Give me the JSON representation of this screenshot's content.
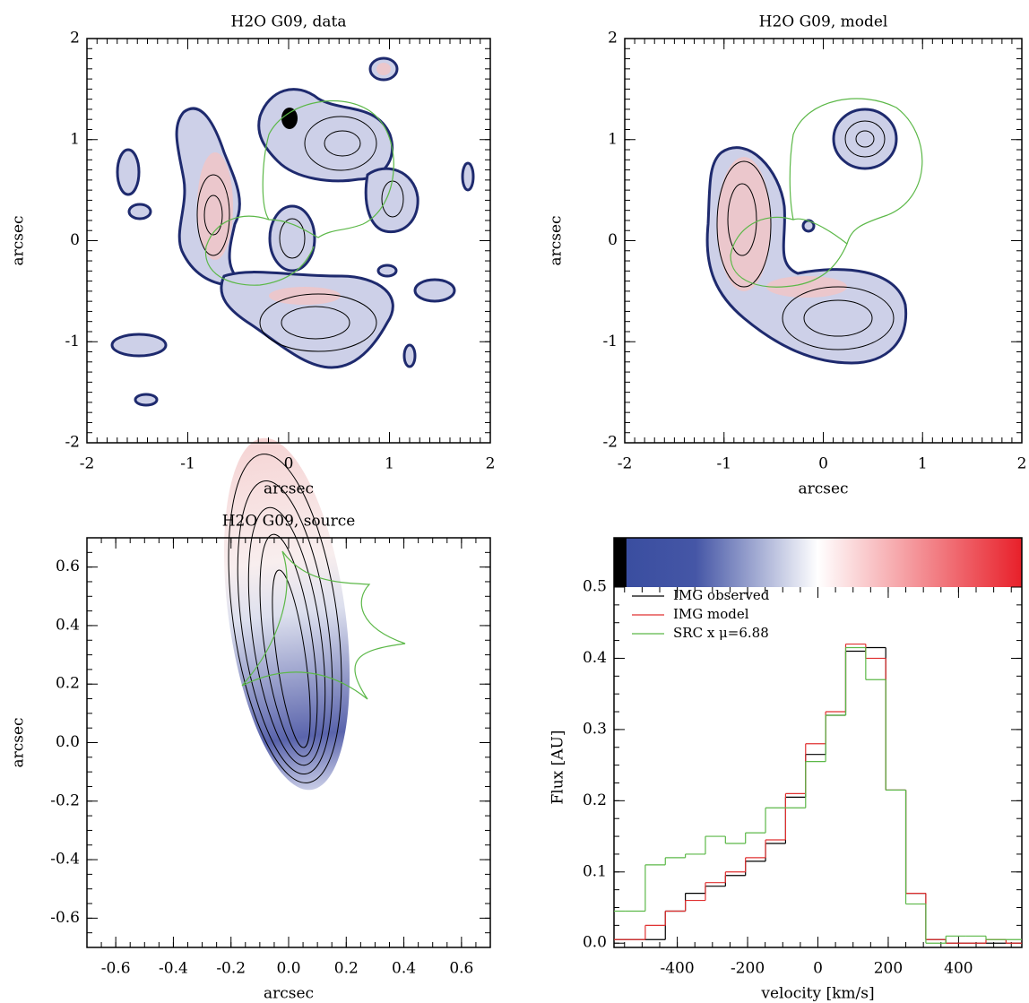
{
  "chart_data": [
    {
      "type": "contour",
      "title": "H2O G09, data",
      "x_label": "arcsec",
      "y_label": "arcsec",
      "xlim": [
        -2,
        2
      ],
      "ylim": [
        -2,
        2
      ],
      "xticks": [
        -2,
        -1,
        0,
        1,
        2
      ],
      "yticks": [
        -2,
        -1,
        0,
        1,
        2
      ]
    },
    {
      "type": "contour",
      "title": "H2O G09, model",
      "x_label": "arcsec",
      "y_label": "arcsec",
      "xlim": [
        -2,
        2
      ],
      "ylim": [
        -2,
        2
      ],
      "xticks": [
        -2,
        -1,
        0,
        1,
        2
      ],
      "yticks": [
        -2,
        -1,
        0,
        1,
        2
      ]
    },
    {
      "type": "contour",
      "title": "H2O G09, source",
      "x_label": "arcsec",
      "y_label": "arcsec",
      "xlim": [
        -0.7,
        0.7
      ],
      "ylim": [
        -0.7,
        0.7
      ],
      "xticks": [
        -0.6,
        -0.4,
        -0.2,
        {
          "value": 0,
          "label": "0.0"
        },
        0.2,
        0.4,
        0.6
      ],
      "yticks": [
        -0.6,
        -0.4,
        -0.2,
        {
          "value": 0,
          "label": "0.0"
        },
        0.2,
        0.4,
        0.6
      ]
    },
    {
      "type": "histogram",
      "x_label": "velocity [km/s]",
      "y_label": "Flux [AU]",
      "xlim": [
        -580,
        580
      ],
      "ylim": [
        -0.006,
        0.5
      ],
      "xticks": [
        -400,
        -200,
        0,
        200,
        400
      ],
      "yticks": [
        {
          "value": 0,
          "label": "0.0"
        },
        0.1,
        0.2,
        0.3,
        0.4,
        0.5
      ],
      "legend": "upper left",
      "bins": [
        -605,
        -548,
        -491,
        -434,
        -377,
        -320,
        -263,
        -206,
        -149,
        -92,
        -35,
        22,
        79,
        136,
        193,
        250,
        307,
        364,
        421,
        478,
        535,
        592
      ],
      "series": [
        {
          "name": "IMG observed",
          "color": "#000000",
          "values": [
            0.005,
            0.005,
            0.005,
            0.045,
            0.07,
            0.08,
            0.095,
            0.115,
            0.14,
            0.205,
            0.265,
            0.32,
            0.41,
            0.415,
            0.215,
            0.07,
            0.005,
            0,
            0,
            0,
            0
          ]
        },
        {
          "name": "IMG model",
          "color": "#e03030",
          "values": [
            0.005,
            0.005,
            0.025,
            0.045,
            0.06,
            0.085,
            0.1,
            0.12,
            0.145,
            0.21,
            0.28,
            0.325,
            0.42,
            0.4,
            0.215,
            0.07,
            0.005,
            0,
            0,
            0.005,
            0
          ]
        },
        {
          "name": "SRC x μ=6.88",
          "color": "#5cb848",
          "values": [
            0.045,
            0.045,
            0.11,
            0.12,
            0.125,
            0.15,
            0.14,
            0.155,
            0.19,
            0.19,
            0.255,
            0.32,
            0.415,
            0.37,
            0.215,
            0.055,
            0,
            0.01,
            0.01,
            0.005,
            0.005
          ]
        }
      ]
    }
  ]
}
